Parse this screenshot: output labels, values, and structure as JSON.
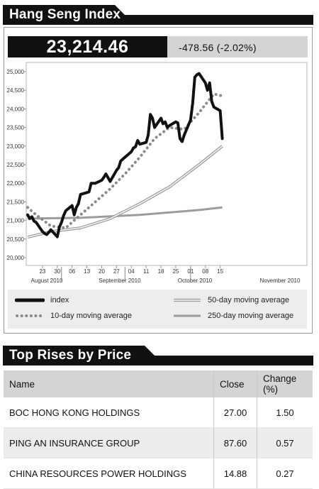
{
  "index_header": {
    "title": "Hang Seng Index"
  },
  "quote": {
    "last": "23,214.46",
    "change": "-478.56 (-2.02%)"
  },
  "chart_data": {
    "type": "line",
    "title": "",
    "ylim": [
      20000,
      25000
    ],
    "y_ticks": [
      "25,000",
      "24,500",
      "24,000",
      "23,500",
      "23,000",
      "22,500",
      "22,000",
      "21,500",
      "21,000",
      "20,500",
      "20,000"
    ],
    "x_tick_labels": [
      "23",
      "30",
      "06",
      "13",
      "20",
      "27",
      "04",
      "11",
      "18",
      "25",
      "01",
      "08",
      "15"
    ],
    "month_labels": [
      "August 2010",
      "September 2010",
      "October 2010",
      "November 2010"
    ],
    "grid": false,
    "legend_position": "bottom",
    "series": [
      {
        "name": "index",
        "color": "#111111",
        "style": "solid-thick",
        "x": [
          "2010-08-16",
          "2010-08-17",
          "2010-08-18",
          "2010-08-19",
          "2010-08-20",
          "2010-08-23",
          "2010-08-24",
          "2010-08-25",
          "2010-08-26",
          "2010-08-27",
          "2010-08-30",
          "2010-08-31",
          "2010-09-01",
          "2010-09-02",
          "2010-09-03",
          "2010-09-06",
          "2010-09-07",
          "2010-09-08",
          "2010-09-09",
          "2010-09-10",
          "2010-09-13",
          "2010-09-14",
          "2010-09-15",
          "2010-09-16",
          "2010-09-17",
          "2010-09-20",
          "2010-09-21",
          "2010-09-22",
          "2010-09-24",
          "2010-09-27",
          "2010-09-28",
          "2010-09-29",
          "2010-09-30",
          "2010-10-04",
          "2010-10-05",
          "2010-10-06",
          "2010-10-07",
          "2010-10-08",
          "2010-10-11",
          "2010-10-12",
          "2010-10-13",
          "2010-10-14",
          "2010-10-15",
          "2010-10-18",
          "2010-10-19",
          "2010-10-20",
          "2010-10-21",
          "2010-10-22",
          "2010-10-25",
          "2010-10-26",
          "2010-10-27",
          "2010-10-28",
          "2010-10-29",
          "2010-11-01",
          "2010-11-02",
          "2010-11-03",
          "2010-11-04",
          "2010-11-05",
          "2010-11-08",
          "2010-11-09",
          "2010-11-10",
          "2010-11-11",
          "2010-11-12",
          "2010-11-15",
          "2010-11-16"
        ],
        "values": [
          21150,
          21050,
          21100,
          20980,
          20950,
          20700,
          20650,
          20620,
          20680,
          20750,
          20560,
          20820,
          20950,
          21130,
          21260,
          21400,
          21150,
          21350,
          21450,
          21700,
          21750,
          21770,
          22000,
          22000,
          22000,
          22080,
          22160,
          22250,
          22050,
          22350,
          22420,
          22600,
          22650,
          22850,
          22950,
          22980,
          23150,
          23050,
          23100,
          23300,
          23850,
          23750,
          23500,
          23750,
          23600,
          23650,
          23500,
          23550,
          23650,
          23620,
          23200,
          23120,
          23300,
          23700,
          24150,
          24850,
          24920,
          24950,
          24700,
          24500,
          24700,
          24200,
          24050,
          23950,
          23200
        ]
      },
      {
        "name": "10-day moving average",
        "color": "#8a8a8a",
        "style": "dotted",
        "x": [
          "2010-08-16",
          "2010-08-20",
          "2010-08-27",
          "2010-09-03",
          "2010-09-10",
          "2010-09-17",
          "2010-09-24",
          "2010-10-01",
          "2010-10-08",
          "2010-10-15",
          "2010-10-22",
          "2010-10-29",
          "2010-11-05",
          "2010-11-12",
          "2010-11-16"
        ],
        "values": [
          21350,
          21150,
          20850,
          20800,
          21150,
          21500,
          21850,
          22250,
          22700,
          23200,
          23500,
          23450,
          23900,
          24400,
          24350
        ]
      },
      {
        "name": "50-day moving average",
        "color": "#9c9c9c",
        "style": "double",
        "x": [
          "2010-08-16",
          "2010-08-27",
          "2010-09-10",
          "2010-09-24",
          "2010-10-08",
          "2010-10-22",
          "2010-11-05",
          "2010-11-16"
        ],
        "values": [
          20550,
          20700,
          20800,
          21050,
          21450,
          21900,
          22500,
          23000
        ]
      },
      {
        "name": "250-day moving average",
        "color": "#9c9c9c",
        "style": "solid",
        "x": [
          "2010-08-16",
          "2010-09-10",
          "2010-10-08",
          "2010-11-05",
          "2010-11-16"
        ],
        "values": [
          21050,
          21070,
          21150,
          21280,
          21350
        ]
      }
    ]
  },
  "legend": {
    "index": "index",
    "ma10": "10-day moving average",
    "ma50": "50-day moving average",
    "ma250": "250-day moving average"
  },
  "rises_header": {
    "title": "Top Rises by Price"
  },
  "rises_table": {
    "headers": {
      "name": "Name",
      "close": "Close",
      "change": "Change (%)"
    },
    "rows": [
      {
        "name": "BOC HONG KONG HOLDINGS",
        "close": "27.00",
        "change": "1.50"
      },
      {
        "name": "PING AN INSURANCE GROUP",
        "close": "87.60",
        "change": "0.57"
      },
      {
        "name": "CHINA RESOURCES POWER HOLDINGS",
        "close": "14.88",
        "change": "0.27"
      }
    ]
  }
}
